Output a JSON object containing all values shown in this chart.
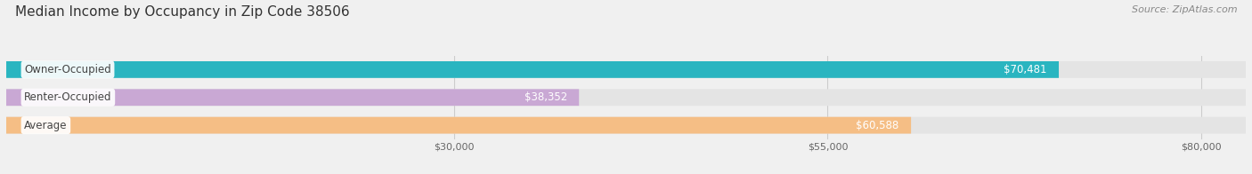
{
  "title": "Median Income by Occupancy in Zip Code 38506",
  "source": "Source: ZipAtlas.com",
  "categories": [
    "Owner-Occupied",
    "Renter-Occupied",
    "Average"
  ],
  "values": [
    70481,
    38352,
    60588
  ],
  "bar_colors": [
    "#2ab5c0",
    "#c9a8d4",
    "#f5be85"
  ],
  "value_labels": [
    "$70,481",
    "$38,352",
    "$60,588"
  ],
  "xlim": [
    0,
    83000
  ],
  "xticks": [
    30000,
    55000,
    80000
  ],
  "xtick_labels": [
    "$30,000",
    "$55,000",
    "$80,000"
  ],
  "title_fontsize": 11,
  "source_fontsize": 8,
  "bar_label_fontsize": 8.5,
  "value_label_fontsize": 8.5,
  "tick_fontsize": 8,
  "background_color": "#f0f0f0",
  "bar_background_color": "#e4e4e4",
  "bar_height": 0.6,
  "bar_gap_color": "#f0f0f0"
}
